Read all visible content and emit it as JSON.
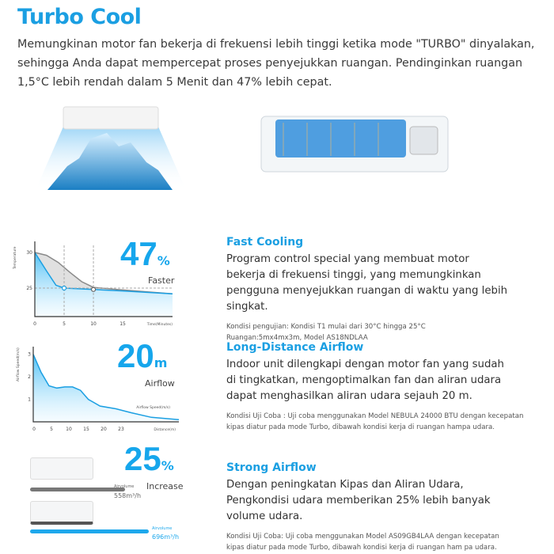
{
  "title": "Turbo Cool",
  "intro": "Memungkinan motor fan bekerja di frekuensi lebih tinggi ketika mode \"TURBO\" dinyalakan, sehingga Anda dapat mempercepat proses penyejukkan ruangan. Pendinginkan ruangan 1,5°C lebih rendah dalam 5 Menit dan 47% lebih cepat.",
  "colors": {
    "accent": "#1b9fe2",
    "gray": "#8a8a8a"
  },
  "sections": [
    {
      "heading": "Fast Cooling",
      "body": "Program control special yang membuat motor bekerja di frekuensi tinggi, yang memungkinkan pengguna menyejukkan ruangan di waktu yang lebih singkat.",
      "note": "Kondisi pengujian: Kondisi T1 mulai dari 30°C hingga 25°C\nRuangan:5mx4mx3m, Model AS18NDLAA",
      "stat": "47",
      "stat_unit": "%",
      "stat_label": "Faster"
    },
    {
      "heading": "Long-Distance Airflow",
      "body": "Indoor unit dilengkapi dengan motor fan yang sudah di tingkatkan, mengoptimalkan fan dan aliran udara dapat menghasilkan aliran udara sejauh 20 m.",
      "note": "Kondisi Uji Coba : Uji coba menggunakan Model NEBULA 24000 BTU dengan kecepatan kipas diatur pada mode Turbo, dibawah kondisi kerja di ruangan hampa udara.",
      "stat": "20",
      "stat_unit": "m",
      "stat_label": "Airflow"
    },
    {
      "heading": "Strong Airflow",
      "body": "Dengan peningkatan Kipas dan Aliran Udara, Pengkondisi udara memberikan 25% lebih banyak volume udara.",
      "note": "Kondisi Uji Coba: Uji coba menggunakan Model AS09GB4LAA dengan kecepatan kipas diatur pada mode Turbo, dibawah kondisi kerja di ruangan ham pa udara.",
      "stat": "25",
      "stat_unit": "%",
      "stat_label": "Increase"
    }
  ],
  "chart_data": [
    {
      "type": "area",
      "ylabel": "Temperature",
      "xlabel": "Time(Minutes)",
      "xlim": [
        0,
        23.5
      ],
      "ylim": [
        21,
        31
      ],
      "x_ticks": [
        0,
        5,
        10,
        15
      ],
      "y_ticks": [
        25,
        30
      ],
      "grid": false,
      "markers": [
        {
          "x": 5,
          "y": 25
        },
        {
          "x": 10,
          "y": 24.8
        }
      ],
      "series": [
        {
          "color": "#8a8a8a",
          "points": [
            [
              0,
              30
            ],
            [
              2,
              29.6
            ],
            [
              4,
              28.6
            ],
            [
              6,
              27.2
            ],
            [
              8,
              25.9
            ],
            [
              10,
              25.1
            ],
            [
              14,
              24.8
            ],
            [
              23.5,
              24.2
            ]
          ]
        },
        {
          "color": "#1b9fe2",
          "points": [
            [
              0,
              30
            ],
            [
              2,
              27.4
            ],
            [
              3.6,
              25.4
            ],
            [
              5,
              25
            ],
            [
              10,
              24.8
            ],
            [
              15,
              24.6
            ],
            [
              23.5,
              24.2
            ]
          ]
        }
      ]
    },
    {
      "type": "area",
      "ylabel": "Airflow Speed(m/s)",
      "xlabel": "Distance(m)",
      "series_label": "Airflow Speed(m/s)",
      "xlim": [
        0,
        37
      ],
      "ylim": [
        0,
        3.2
      ],
      "x_ticks": [
        "0",
        "5",
        "10",
        "15",
        "20",
        "23"
      ],
      "y_ticks": [
        "1",
        "2",
        "3"
      ],
      "series": [
        {
          "color": "#1b9fe2",
          "points": [
            [
              0,
              3
            ],
            [
              2,
              2.2
            ],
            [
              4,
              1.6
            ],
            [
              6,
              1.5
            ],
            [
              8,
              1.55
            ],
            [
              10,
              1.55
            ],
            [
              12,
              1.4
            ],
            [
              14,
              1
            ],
            [
              17,
              0.7
            ],
            [
              21,
              0.58
            ],
            [
              25,
              0.4
            ],
            [
              30,
              0.2
            ],
            [
              37,
              0.1
            ]
          ]
        }
      ]
    },
    {
      "type": "bar",
      "unit": "m³/h",
      "series": [
        {
          "label": "Airvolume",
          "value": 558,
          "color": "#777777"
        },
        {
          "label": "Airvolume",
          "value": 696,
          "color": "#1ea8ec"
        }
      ]
    }
  ]
}
